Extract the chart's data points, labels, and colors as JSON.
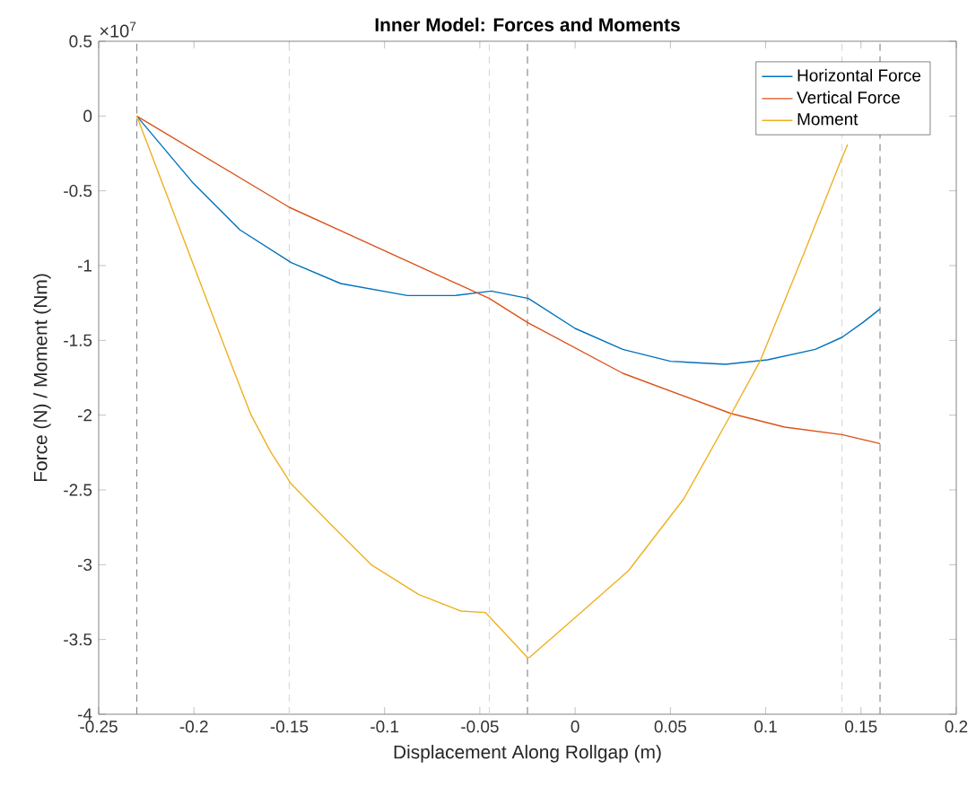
{
  "chart_data": {
    "type": "line",
    "title": "Inner Model: Forces and Moments",
    "xlabel": "Displacement Along Rollgap (m)",
    "ylabel": "Force (N) / Moment (Nm)",
    "annotations": [
      "×10$^{7}$"
    ],
    "xlim": [
      -0.25,
      0.2
    ],
    "xticks": [
      -0.25,
      -0.2,
      -0.15,
      -0.1,
      -0.05,
      0,
      0.05,
      0.1,
      0.15,
      0.2
    ],
    "ylim": [
      -4,
      0.5
    ],
    "yticks": [
      -4,
      -3.5,
      -3,
      -2.5,
      -2,
      -1.5,
      -1,
      -0.5,
      0,
      0.5
    ],
    "legend": "top right",
    "grid": false,
    "marker": "none",
    "line_style": "solid",
    "series": [
      {
        "name": "Horizontal Force",
        "color": "#0072bd",
        "x": [
          -0.23,
          -0.201,
          -0.176,
          -0.149,
          -0.123,
          -0.088,
          -0.063,
          -0.044,
          -0.0245,
          0,
          0.025,
          0.05,
          0.079,
          0.101,
          0.126,
          0.14,
          0.151,
          0.16
        ],
        "values": [
          0,
          -0.44,
          -0.76,
          -0.98,
          -1.12,
          -1.2,
          -1.2,
          -1.17,
          -1.22,
          -1.42,
          -1.56,
          -1.64,
          -1.66,
          -1.63,
          -1.56,
          -1.48,
          -1.38,
          -1.29
        ]
      },
      {
        "name": "Vertical Force",
        "color": "#d95319",
        "x": [
          -0.23,
          -0.15,
          -0.045,
          -0.025,
          0.025,
          0.082,
          0.11,
          0.14,
          0.16
        ],
        "values": [
          0,
          -0.61,
          -1.22,
          -1.38,
          -1.72,
          -1.99,
          -2.08,
          -2.13,
          -2.19
        ]
      },
      {
        "name": "Moment",
        "color": "#edb120",
        "x": [
          -0.23,
          -0.181,
          -0.17,
          -0.16,
          -0.149,
          -0.129,
          -0.107,
          -0.082,
          -0.06,
          -0.047,
          -0.025,
          -0.024,
          0.003,
          0.028,
          0.057,
          0.082,
          0.097,
          0.12,
          0.14,
          0.143
        ],
        "values": [
          0,
          -1.64,
          -2.0,
          -2.24,
          -2.46,
          -2.72,
          -3.0,
          -3.2,
          -3.31,
          -3.32,
          -3.62,
          -3.62,
          -3.32,
          -3.04,
          -2.56,
          -1.99,
          -1.64,
          -0.92,
          -0.28,
          -0.19
        ]
      }
    ],
    "ref_lines": [
      {
        "axis": "x",
        "value": -0.23,
        "color": "#8c8c8c",
        "line_style": "dashed"
      },
      {
        "axis": "x",
        "value": -0.15,
        "color": "#d9d9d9",
        "line_style": "dashed"
      },
      {
        "axis": "x",
        "value": -0.045,
        "color": "#d9d9d9",
        "line_style": "dashed"
      },
      {
        "axis": "x",
        "value": -0.025,
        "color": "#8c8c8c",
        "line_style": "dashed"
      },
      {
        "axis": "x",
        "value": 0.14,
        "color": "#d9d9d9",
        "line_style": "dashed"
      },
      {
        "axis": "x",
        "value": 0.16,
        "color": "#8c8c8c",
        "line_style": "dashed"
      }
    ]
  }
}
